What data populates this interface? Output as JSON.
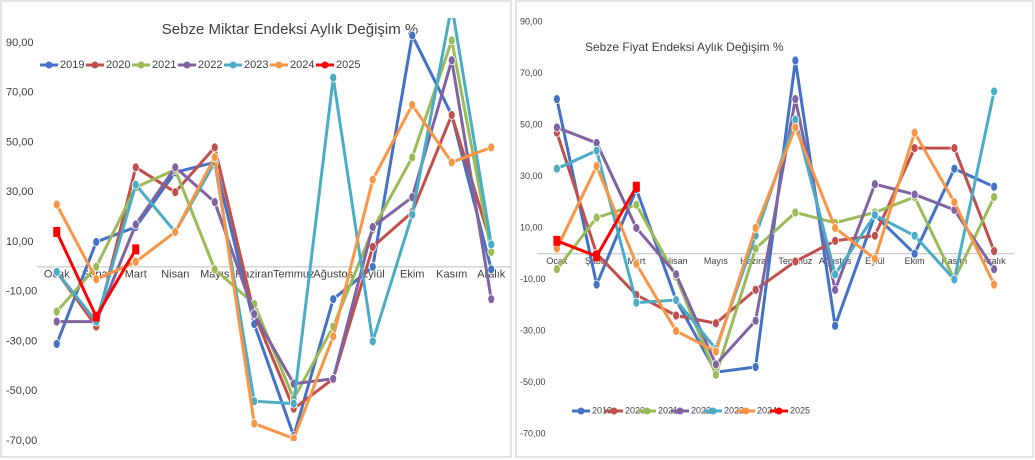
{
  "chart_data": [
    {
      "type": "line",
      "title": "Sebze Miktar Endeksi Aylık Değişim %",
      "categories": [
        "Ocak",
        "Şubat",
        "Mart",
        "Nisan",
        "Mayıs",
        "Haziran",
        "Temmuz",
        "Ağustos",
        "Eylül",
        "Ekim",
        "Kasım",
        "Aralık"
      ],
      "ylim": [
        -70,
        100
      ],
      "yticks": [
        {
          "value": -70,
          "label": "-70,00"
        },
        {
          "value": -50,
          "label": "-50,00"
        },
        {
          "value": -30,
          "label": "-30,00"
        },
        {
          "value": -10,
          "label": "-10,00"
        },
        {
          "value": 10,
          "label": "10,00"
        },
        {
          "value": 30,
          "label": "30,00"
        },
        {
          "value": 50,
          "label": "50,00"
        },
        {
          "value": 70,
          "label": "70,00"
        },
        {
          "value": 90,
          "label": "90,00"
        }
      ],
      "grid": false,
      "legend": "top-left",
      "series": [
        {
          "name": "2019",
          "color": "#4472c4",
          "values": [
            -31,
            10,
            16,
            38,
            42,
            -23,
            -68,
            -13,
            0,
            93,
            61,
            -1
          ]
        },
        {
          "name": "2020",
          "color": "#c0504d",
          "values": [
            -2,
            -24,
            40,
            30,
            48,
            -19,
            -57,
            -45,
            8,
            22,
            61,
            9
          ]
        },
        {
          "name": "2021",
          "color": "#9bbb59",
          "values": [
            -18,
            0,
            32,
            39,
            -1,
            -15,
            -53,
            -24,
            15,
            44,
            91,
            6
          ]
        },
        {
          "name": "2022",
          "color": "#8064a2",
          "values": [
            -22,
            -22,
            17,
            40,
            26,
            -19,
            -47,
            -45,
            16,
            28,
            83,
            -13
          ]
        },
        {
          "name": "2023",
          "color": "#4bacc6",
          "values": [
            -2,
            -22,
            33,
            14,
            42,
            -54,
            -55,
            76,
            -30,
            21,
            105,
            9
          ]
        },
        {
          "name": "2024",
          "color": "#f79646",
          "values": [
            25,
            -5,
            2,
            14,
            44,
            -63,
            -69,
            -28,
            35,
            65,
            42,
            48
          ]
        },
        {
          "name": "2025",
          "color": "#ff0000",
          "values": [
            14,
            -20,
            7,
            null,
            null,
            null,
            null,
            null,
            null,
            null,
            null,
            null
          ]
        }
      ]
    },
    {
      "type": "line",
      "title": "Sebze Fiyat Endeksi Aylık Değişim %",
      "categories": [
        "Ocak",
        "Şubat",
        "Mart",
        "Nisan",
        "Mayıs",
        "Haziran",
        "Temmuz",
        "Ağustos",
        "Eylül",
        "Ekim",
        "Kasım",
        "Aralık"
      ],
      "ylim": [
        -70,
        95
      ],
      "yticks": [
        {
          "value": -70,
          "label": "-70,00"
        },
        {
          "value": -50,
          "label": "-50,00"
        },
        {
          "value": -30,
          "label": "-30,00"
        },
        {
          "value": -10,
          "label": "-10,00"
        },
        {
          "value": 10,
          "label": "10,00"
        },
        {
          "value": 30,
          "label": "30,00"
        },
        {
          "value": 50,
          "label": "50,00"
        },
        {
          "value": 70,
          "label": "70,00"
        },
        {
          "value": 90,
          "label": "90,00"
        }
      ],
      "grid": false,
      "legend": "bottom",
      "series": [
        {
          "name": "2019",
          "color": "#4472c4",
          "values": [
            60,
            -12,
            25,
            -18,
            -46,
            -44,
            75,
            -28,
            15,
            0,
            33,
            26
          ]
        },
        {
          "name": "2020",
          "color": "#c0504d",
          "values": [
            47,
            0,
            -16,
            -24,
            -27,
            -14,
            -3,
            5,
            7,
            41,
            41,
            1
          ]
        },
        {
          "name": "2021",
          "color": "#9bbb59",
          "values": [
            -6,
            14,
            19,
            -9,
            -47,
            2,
            16,
            12,
            16,
            22,
            -10,
            22
          ]
        },
        {
          "name": "2022",
          "color": "#8064a2",
          "values": [
            49,
            43,
            10,
            -8,
            -43,
            -26,
            60,
            -14,
            27,
            23,
            17,
            -6
          ]
        },
        {
          "name": "2023",
          "color": "#4bacc6",
          "values": [
            33,
            40,
            -19,
            -18,
            -37,
            7,
            52,
            -8,
            15,
            7,
            -10,
            63
          ]
        },
        {
          "name": "2024",
          "color": "#f79646",
          "values": [
            2,
            34,
            -4,
            -30,
            -38,
            10,
            49,
            10,
            -2,
            47,
            20,
            -12
          ]
        },
        {
          "name": "2025",
          "color": "#ff0000",
          "values": [
            5,
            -1,
            26,
            null,
            null,
            null,
            null,
            null,
            null,
            null,
            null,
            null
          ]
        }
      ]
    }
  ]
}
